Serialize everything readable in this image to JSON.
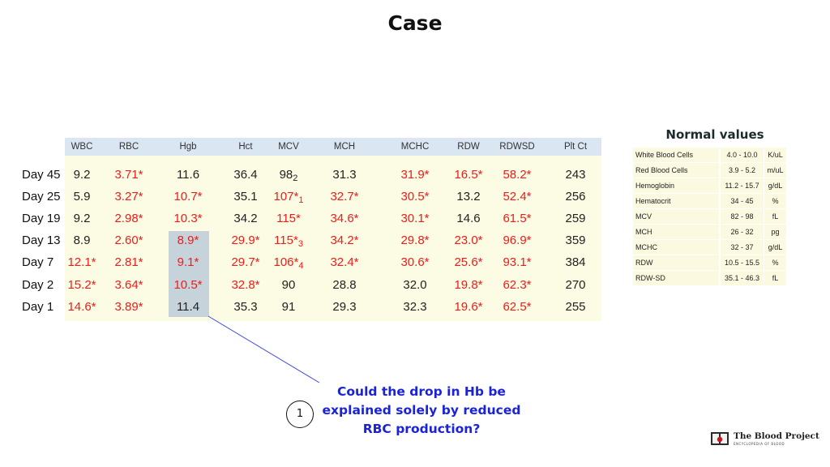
{
  "title": "Case",
  "lab_table": {
    "columns": [
      "WBC",
      "RBC",
      "Hgb",
      "Hct",
      "MCV",
      "MCH",
      "MCHC",
      "RDW",
      "RDWSD",
      "Plt Ct"
    ],
    "rows": [
      {
        "label": "Day 45",
        "cells": [
          {
            "v": "9.2"
          },
          {
            "v": "3.71*",
            "abn": true
          },
          {
            "v": "11.6"
          },
          {
            "v": "36.4"
          },
          {
            "v": "98",
            "sub": "2"
          },
          {
            "v": "31.3"
          },
          {
            "v": "31.9*",
            "abn": true
          },
          {
            "v": "16.5*",
            "abn": true
          },
          {
            "v": "58.2*",
            "abn": true
          },
          {
            "v": "243"
          }
        ]
      },
      {
        "label": "Day 25",
        "cells": [
          {
            "v": "5.9"
          },
          {
            "v": "3.27*",
            "abn": true
          },
          {
            "v": "10.7*",
            "abn": true
          },
          {
            "v": "35.1"
          },
          {
            "v": "107*",
            "sub": "1",
            "abn": true
          },
          {
            "v": "32.7*",
            "abn": true
          },
          {
            "v": "30.5*",
            "abn": true
          },
          {
            "v": "13.2"
          },
          {
            "v": "52.4*",
            "abn": true
          },
          {
            "v": "256"
          }
        ]
      },
      {
        "label": "Day 19",
        "cells": [
          {
            "v": "9.2"
          },
          {
            "v": "2.98*",
            "abn": true
          },
          {
            "v": "10.3*",
            "abn": true
          },
          {
            "v": "34.2"
          },
          {
            "v": "115*",
            "abn": true
          },
          {
            "v": "34.6*",
            "abn": true
          },
          {
            "v": "30.1*",
            "abn": true
          },
          {
            "v": "14.6"
          },
          {
            "v": "61.5*",
            "abn": true
          },
          {
            "v": "259"
          }
        ]
      },
      {
        "label": "Day 13",
        "cells": [
          {
            "v": "8.9"
          },
          {
            "v": "2.60*",
            "abn": true
          },
          {
            "v": "8.9*",
            "abn": true
          },
          {
            "v": "29.9*",
            "abn": true
          },
          {
            "v": "115*",
            "sub": "3",
            "abn": true
          },
          {
            "v": "34.2*",
            "abn": true
          },
          {
            "v": "29.8*",
            "abn": true
          },
          {
            "v": "23.0*",
            "abn": true
          },
          {
            "v": "96.9*",
            "abn": true
          },
          {
            "v": "359"
          }
        ]
      },
      {
        "label": "Day 7",
        "cells": [
          {
            "v": "12.1*",
            "abn": true
          },
          {
            "v": "2.81*",
            "abn": true
          },
          {
            "v": "9.1*",
            "abn": true
          },
          {
            "v": "29.7*",
            "abn": true
          },
          {
            "v": "106*",
            "sub": "4",
            "abn": true
          },
          {
            "v": "32.4*",
            "abn": true
          },
          {
            "v": "30.6*",
            "abn": true
          },
          {
            "v": "25.6*",
            "abn": true
          },
          {
            "v": "93.1*",
            "abn": true
          },
          {
            "v": "384"
          }
        ]
      },
      {
        "label": "Day 2",
        "cells": [
          {
            "v": "15.2*",
            "abn": true
          },
          {
            "v": "3.64*",
            "abn": true
          },
          {
            "v": "10.5*",
            "abn": true
          },
          {
            "v": "32.8*",
            "abn": true
          },
          {
            "v": "90"
          },
          {
            "v": "28.8"
          },
          {
            "v": "32.0"
          },
          {
            "v": "19.8*",
            "abn": true
          },
          {
            "v": "62.3*",
            "abn": true
          },
          {
            "v": "270"
          }
        ]
      },
      {
        "label": "Day 1",
        "cells": [
          {
            "v": "14.6*",
            "abn": true
          },
          {
            "v": "3.89*",
            "abn": true
          },
          {
            "v": "11.4"
          },
          {
            "v": "35.3"
          },
          {
            "v": "91"
          },
          {
            "v": "29.3"
          },
          {
            "v": "32.3"
          },
          {
            "v": "19.6*",
            "abn": true
          },
          {
            "v": "62.5*",
            "abn": true
          },
          {
            "v": "255"
          }
        ]
      }
    ]
  },
  "normal_values": {
    "title": "Normal values",
    "rows": [
      {
        "name": "White Blood Cells",
        "range": "4.0 - 10.0",
        "unit": "K/uL"
      },
      {
        "name": "Red Blood Cells",
        "range": "3.9 - 5.2",
        "unit": "m/uL"
      },
      {
        "name": "Hemoglobin",
        "range": "11.2 - 15.7",
        "unit": "g/dL"
      },
      {
        "name": "Hematocrit",
        "range": "34 - 45",
        "unit": "%"
      },
      {
        "name": "MCV",
        "range": "82 - 98",
        "unit": "fL"
      },
      {
        "name": "MCH",
        "range": "26 - 32",
        "unit": "pg"
      },
      {
        "name": "MCHC",
        "range": "32 - 37",
        "unit": "g/dL"
      },
      {
        "name": "RDW",
        "range": "10.5 - 15.5",
        "unit": "%"
      },
      {
        "name": "RDW-SD",
        "range": "35.1 - 46.3",
        "unit": "fL"
      }
    ]
  },
  "annotation": {
    "number": "1",
    "question_lines": [
      "Could the drop in Hb be",
      "explained solely by reduced",
      "RBC production?"
    ]
  },
  "logo": {
    "name": "The Blood Project",
    "subtitle": "ENCYCLOPEDIA OF BLOOD"
  },
  "colors": {
    "abnormal": "#ee1c1c",
    "header_bg": "#dbe6f3",
    "table_bg": "#fcfbe3",
    "highlight": "#c6d3db",
    "question": "#1a23d8"
  }
}
